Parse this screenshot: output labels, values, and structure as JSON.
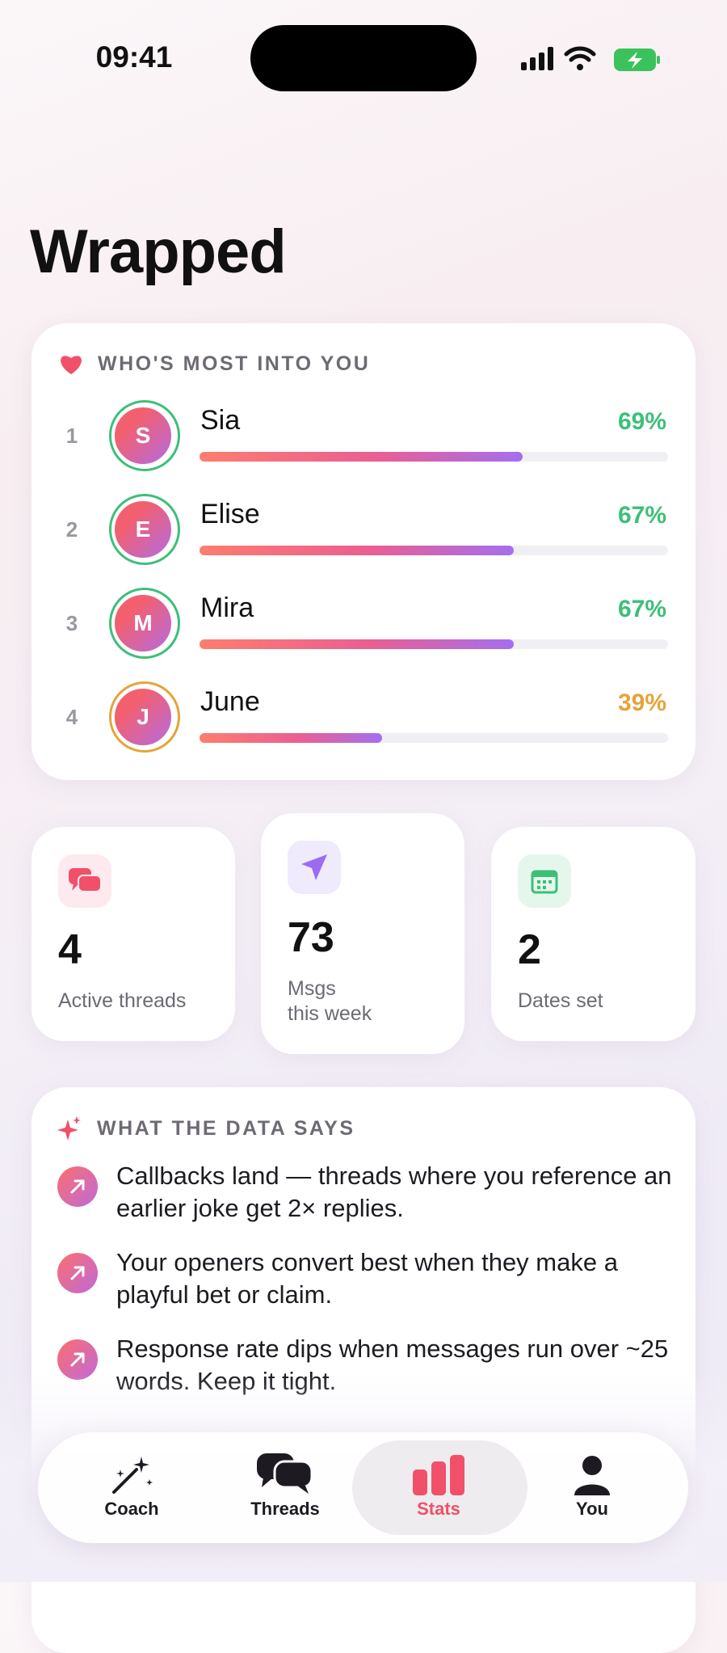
{
  "status_bar": {
    "time": "09:41"
  },
  "header": {
    "title": "Wrapped"
  },
  "ranking": {
    "title": "WHO'S MOST INTO YOU",
    "people": [
      {
        "rank": "1",
        "initial": "S",
        "name": "Sia",
        "percent": 69,
        "percent_label": "69%",
        "color": "#3dbf78"
      },
      {
        "rank": "2",
        "initial": "E",
        "name": "Elise",
        "percent": 67,
        "percent_label": "67%",
        "color": "#3dbf78"
      },
      {
        "rank": "3",
        "initial": "M",
        "name": "Mira",
        "percent": 67,
        "percent_label": "67%",
        "color": "#3dbf78"
      },
      {
        "rank": "4",
        "initial": "J",
        "name": "June",
        "percent": 39,
        "percent_label": "39%",
        "color": "#e6a33a"
      }
    ]
  },
  "stats": [
    {
      "value": "4",
      "label": "Active threads"
    },
    {
      "value": "73",
      "label": "Msgs\nthis week"
    },
    {
      "value": "2",
      "label": "Dates set"
    }
  ],
  "insights": {
    "title": "WHAT THE DATA SAYS",
    "items": [
      "Callbacks land — threads where you reference an earlier joke get 2× replies.",
      "Your openers convert best when they make a playful bet or claim.",
      "Response rate dips when messages run over ~25 words. Keep it tight."
    ]
  },
  "tab_bar": {
    "tabs": [
      "Coach",
      "Threads",
      "Stats",
      "You"
    ],
    "selected": "Stats"
  }
}
